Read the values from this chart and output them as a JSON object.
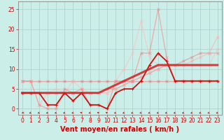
{
  "background_color": "#cceee8",
  "grid_color": "#aacccc",
  "xlabel": "Vent moyen/en rafales ( km/h )",
  "xlabel_color": "#cc0000",
  "xlabel_fontsize": 7,
  "tick_color": "#cc0000",
  "tick_fontsize": 5.5,
  "yticks": [
    0,
    5,
    10,
    15,
    20,
    25
  ],
  "xticks": [
    0,
    1,
    2,
    3,
    4,
    5,
    6,
    7,
    8,
    9,
    10,
    11,
    12,
    13,
    14,
    15,
    16,
    17,
    18,
    19,
    20,
    21,
    22,
    23
  ],
  "xlim": [
    -0.5,
    23.5
  ],
  "ylim": [
    -1.5,
    27
  ],
  "lines": [
    {
      "x": [
        0,
        1,
        2,
        3,
        4,
        5,
        6,
        7,
        8,
        9,
        10,
        11,
        12,
        13,
        14,
        15,
        16,
        17,
        18,
        19,
        20,
        21,
        22,
        23
      ],
      "y": [
        7,
        7,
        7,
        7,
        7,
        7,
        7,
        7,
        7,
        7,
        7,
        7,
        7,
        7,
        7,
        7,
        7,
        7,
        7,
        7,
        7,
        7,
        7,
        7
      ],
      "color": "#ee3333",
      "alpha": 0.35,
      "linewidth": 1.0,
      "marker": "x",
      "markersize": 2.5
    },
    {
      "x": [
        0,
        1,
        2,
        3,
        4,
        5,
        6,
        7,
        8,
        9,
        10,
        11,
        12,
        13,
        14,
        15,
        16,
        17,
        18,
        19,
        20,
        21,
        22,
        23
      ],
      "y": [
        4,
        4,
        4,
        4,
        4,
        4,
        4,
        4,
        4,
        4,
        5,
        5,
        6,
        7,
        8,
        9,
        10,
        11,
        11,
        12,
        13,
        14,
        14,
        14
      ],
      "color": "#ee7777",
      "alpha": 0.5,
      "linewidth": 1.0,
      "marker": "x",
      "markersize": 2.5
    },
    {
      "x": [
        0,
        1,
        2,
        3,
        4,
        5,
        6,
        7,
        8,
        9,
        10,
        11,
        12,
        13,
        14,
        15,
        16,
        17,
        18,
        19,
        20,
        21,
        22,
        23
      ],
      "y": [
        4,
        4,
        4,
        4,
        4,
        4,
        4,
        4,
        4,
        4,
        4,
        5,
        6,
        7,
        8,
        9,
        10,
        11,
        11,
        11,
        12,
        13,
        14,
        18
      ],
      "color": "#ffaaaa",
      "alpha": 0.55,
      "linewidth": 1.0,
      "marker": "x",
      "markersize": 2.5
    },
    {
      "x": [
        0,
        1,
        2,
        3,
        4,
        5,
        6,
        7,
        8,
        9,
        10,
        11,
        12,
        13,
        14,
        15,
        16,
        17,
        18,
        19,
        20,
        21,
        22,
        23
      ],
      "y": [
        7,
        7,
        1,
        4,
        5,
        4,
        7,
        5,
        4,
        4,
        4,
        7,
        10,
        14,
        22,
        13,
        11,
        11,
        11,
        11,
        11,
        11,
        11,
        15
      ],
      "color": "#ffbbbb",
      "alpha": 0.6,
      "linewidth": 0.9,
      "marker": "x",
      "markersize": 2.5
    },
    {
      "x": [
        0,
        1,
        2,
        3,
        4,
        5,
        6,
        7,
        8,
        9,
        10,
        11,
        12,
        13,
        14,
        15,
        16,
        17,
        18,
        19,
        20,
        21,
        22,
        23
      ],
      "y": [
        7,
        7,
        1,
        0,
        0,
        5,
        4,
        5,
        1,
        1,
        0,
        7,
        7,
        7,
        14,
        14,
        25,
        13,
        7,
        7,
        7,
        7,
        7,
        7
      ],
      "color": "#ff7777",
      "alpha": 0.55,
      "linewidth": 0.9,
      "marker": "x",
      "markersize": 2.5
    },
    {
      "x": [
        0,
        1,
        2,
        3,
        4,
        5,
        6,
        7,
        8,
        9,
        10,
        11,
        12,
        13,
        14,
        15,
        16,
        17,
        18,
        19,
        20,
        21,
        22,
        23
      ],
      "y": [
        4,
        4,
        4,
        1,
        1,
        4,
        2,
        4,
        1,
        1,
        0,
        4,
        5,
        5,
        7,
        11,
        14,
        12,
        7,
        7,
        7,
        7,
        7,
        7
      ],
      "color": "#cc1111",
      "alpha": 1.0,
      "linewidth": 1.3,
      "marker": "+",
      "markersize": 3.5
    },
    {
      "x": [
        0,
        1,
        2,
        3,
        4,
        5,
        6,
        7,
        8,
        9,
        10,
        11,
        12,
        13,
        14,
        15,
        16,
        17,
        18,
        19,
        20,
        21,
        22,
        23
      ],
      "y": [
        4,
        4,
        4,
        4,
        4,
        4,
        4,
        4,
        4,
        4,
        5,
        6,
        7,
        8,
        9,
        10,
        11,
        11,
        11,
        11,
        11,
        11,
        11,
        11
      ],
      "color": "#cc2222",
      "alpha": 0.85,
      "linewidth": 2.2,
      "marker": null,
      "markersize": 0
    }
  ],
  "wind_dirs": [
    [
      270,
      225,
      225,
      225,
      225,
      225,
      225,
      315,
      225,
      315,
      315,
      225,
      225,
      225,
      225,
      225,
      225,
      225,
      225,
      225,
      225,
      225,
      225,
      225
    ]
  ]
}
